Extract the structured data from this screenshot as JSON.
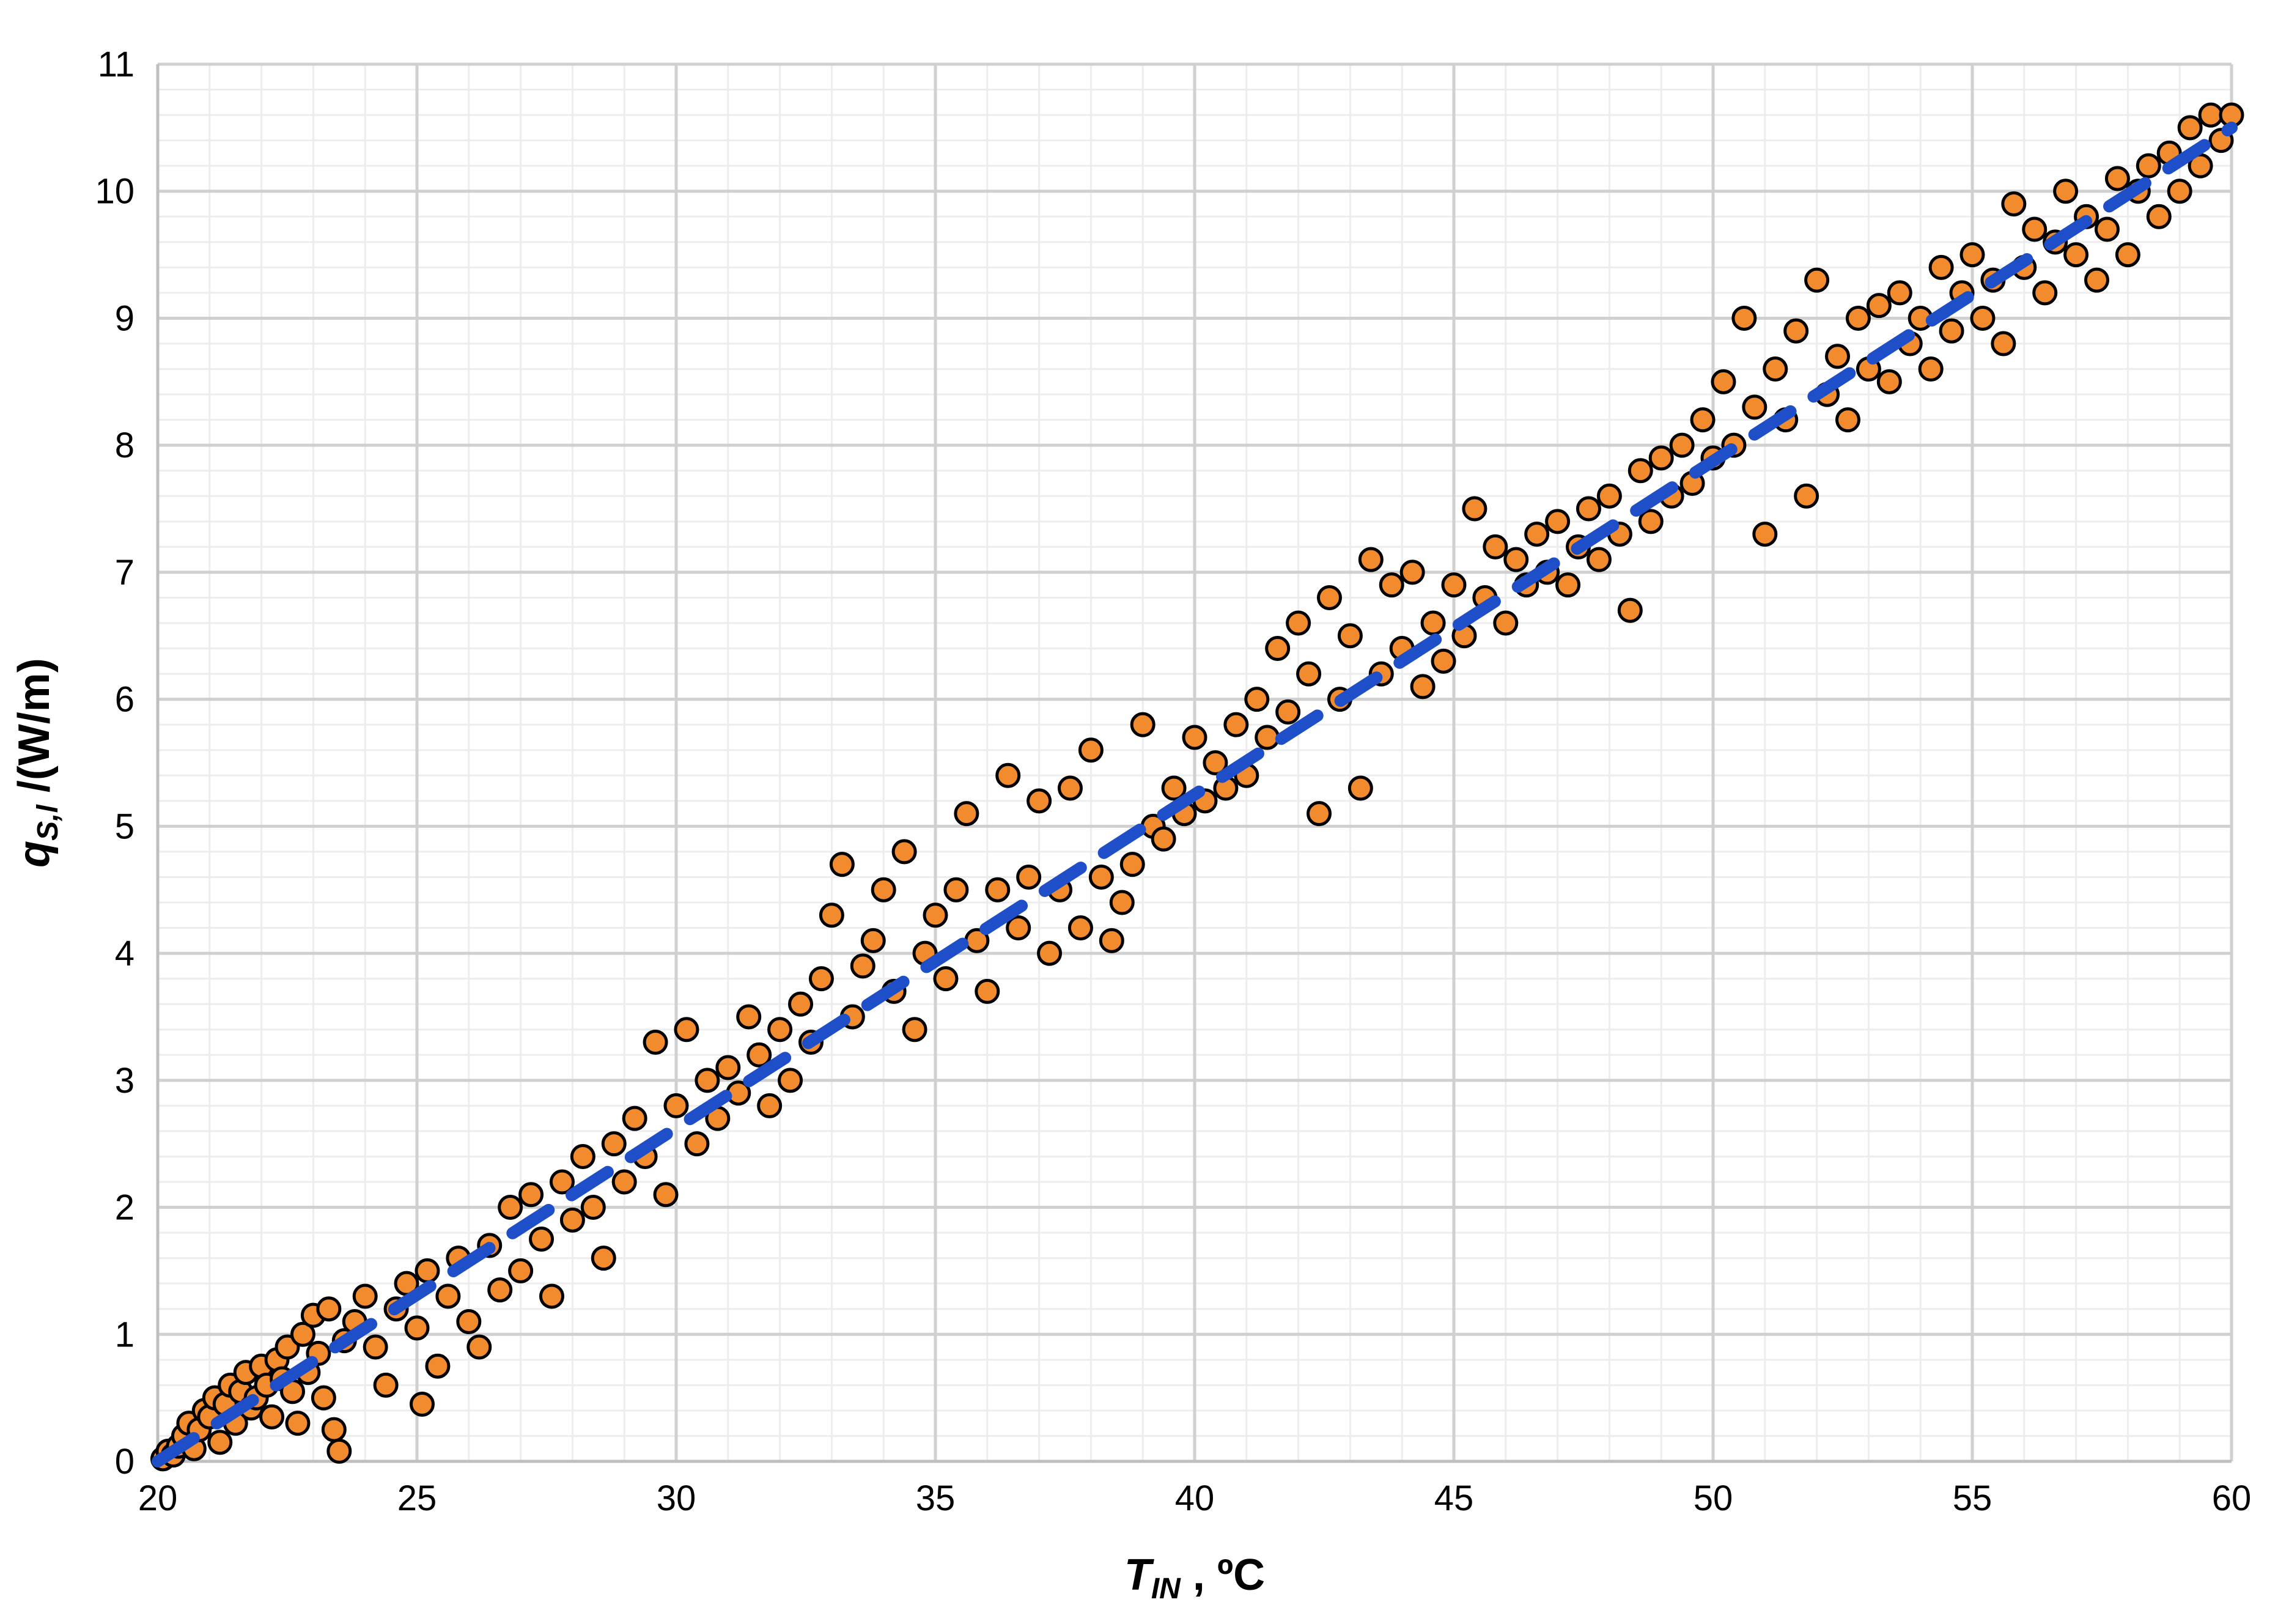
{
  "chart_data": {
    "type": "scatter",
    "title": "",
    "xlabel": {
      "main": "T",
      "sub": "IN",
      "suffix": " , ºC"
    },
    "ylabel": {
      "main": "q",
      "sub": "S,l",
      "suffix": " /(W/m)"
    },
    "xlim": [
      20,
      60
    ],
    "ylim": [
      0,
      11
    ],
    "x_ticks": [
      20,
      25,
      30,
      35,
      40,
      45,
      50,
      55,
      60
    ],
    "y_ticks": [
      0,
      1,
      2,
      3,
      4,
      5,
      6,
      7,
      8,
      9,
      10,
      11
    ],
    "x_tick_labels": [
      "20",
      "25",
      "30",
      "35",
      "40",
      "45",
      "50",
      "55",
      "60"
    ],
    "y_tick_labels": [
      "0",
      "1",
      "2",
      "3",
      "4",
      "5",
      "6",
      "7",
      "8",
      "9",
      "10",
      "11"
    ],
    "x_minor_step": 1,
    "y_minor_step": 0.2,
    "grid": true,
    "legend": "none",
    "colors": {
      "marker_fill": "#F28B2E",
      "marker_edge": "#000000",
      "trendline": "#1F4FC8",
      "major_grid": "#D0D0D0",
      "minor_grid": "#EDEDED",
      "axis": "#BFBFBF"
    },
    "trendline": {
      "style": "dashed",
      "x": [
        20,
        60
      ],
      "y": [
        0.0,
        10.5
      ]
    },
    "series": [
      {
        "marker": "circle",
        "points": [
          [
            20.1,
            0.02
          ],
          [
            20.2,
            0.08
          ],
          [
            20.3,
            0.05
          ],
          [
            20.4,
            0.12
          ],
          [
            20.5,
            0.2
          ],
          [
            20.6,
            0.3
          ],
          [
            20.7,
            0.1
          ],
          [
            20.8,
            0.25
          ],
          [
            20.9,
            0.4
          ],
          [
            21.0,
            0.35
          ],
          [
            21.1,
            0.5
          ],
          [
            21.2,
            0.15
          ],
          [
            21.3,
            0.45
          ],
          [
            21.4,
            0.6
          ],
          [
            21.5,
            0.3
          ],
          [
            21.6,
            0.55
          ],
          [
            21.7,
            0.7
          ],
          [
            21.8,
            0.42
          ],
          [
            21.9,
            0.5
          ],
          [
            22.0,
            0.75
          ],
          [
            22.1,
            0.6
          ],
          [
            22.2,
            0.35
          ],
          [
            22.3,
            0.8
          ],
          [
            22.4,
            0.65
          ],
          [
            22.5,
            0.9
          ],
          [
            22.6,
            0.55
          ],
          [
            22.7,
            0.3
          ],
          [
            22.8,
            1.0
          ],
          [
            22.9,
            0.7
          ],
          [
            23.0,
            1.15
          ],
          [
            23.1,
            0.85
          ],
          [
            23.2,
            0.5
          ],
          [
            23.3,
            1.2
          ],
          [
            23.4,
            0.25
          ],
          [
            23.5,
            0.08
          ],
          [
            23.6,
            0.95
          ],
          [
            23.8,
            1.1
          ],
          [
            24.0,
            1.3
          ],
          [
            24.2,
            0.9
          ],
          [
            24.4,
            0.6
          ],
          [
            24.6,
            1.2
          ],
          [
            24.8,
            1.4
          ],
          [
            25.0,
            1.05
          ],
          [
            25.1,
            0.45
          ],
          [
            25.2,
            1.5
          ],
          [
            25.4,
            0.75
          ],
          [
            25.6,
            1.3
          ],
          [
            25.8,
            1.6
          ],
          [
            26.0,
            1.1
          ],
          [
            26.2,
            0.9
          ],
          [
            26.4,
            1.7
          ],
          [
            26.6,
            1.35
          ],
          [
            26.8,
            2.0
          ],
          [
            27.0,
            1.5
          ],
          [
            27.2,
            2.1
          ],
          [
            27.4,
            1.75
          ],
          [
            27.6,
            1.3
          ],
          [
            27.8,
            2.2
          ],
          [
            28.0,
            1.9
          ],
          [
            28.2,
            2.4
          ],
          [
            28.4,
            2.0
          ],
          [
            28.6,
            1.6
          ],
          [
            28.8,
            2.5
          ],
          [
            29.0,
            2.2
          ],
          [
            29.2,
            2.7
          ],
          [
            29.4,
            2.4
          ],
          [
            29.6,
            3.3
          ],
          [
            29.8,
            2.1
          ],
          [
            30.0,
            2.8
          ],
          [
            30.2,
            3.4
          ],
          [
            30.4,
            2.5
          ],
          [
            30.6,
            3.0
          ],
          [
            30.8,
            2.7
          ],
          [
            31.0,
            3.1
          ],
          [
            31.2,
            2.9
          ],
          [
            31.4,
            3.5
          ],
          [
            31.6,
            3.2
          ],
          [
            31.8,
            2.8
          ],
          [
            32.0,
            3.4
          ],
          [
            32.2,
            3.0
          ],
          [
            32.4,
            3.6
          ],
          [
            32.6,
            3.3
          ],
          [
            32.8,
            3.8
          ],
          [
            33.0,
            4.3
          ],
          [
            33.2,
            4.7
          ],
          [
            33.4,
            3.5
          ],
          [
            33.6,
            3.9
          ],
          [
            33.8,
            4.1
          ],
          [
            34.0,
            4.5
          ],
          [
            34.2,
            3.7
          ],
          [
            34.4,
            4.8
          ],
          [
            34.6,
            3.4
          ],
          [
            34.8,
            4.0
          ],
          [
            35.0,
            4.3
          ],
          [
            35.2,
            3.8
          ],
          [
            35.4,
            4.5
          ],
          [
            35.6,
            5.1
          ],
          [
            35.8,
            4.1
          ],
          [
            36.0,
            3.7
          ],
          [
            36.2,
            4.5
          ],
          [
            36.4,
            5.4
          ],
          [
            36.6,
            4.2
          ],
          [
            36.8,
            4.6
          ],
          [
            37.0,
            5.2
          ],
          [
            37.2,
            4.0
          ],
          [
            37.4,
            4.5
          ],
          [
            37.6,
            5.3
          ],
          [
            37.8,
            4.2
          ],
          [
            38.0,
            5.6
          ],
          [
            38.2,
            4.6
          ],
          [
            38.4,
            4.1
          ],
          [
            38.6,
            4.4
          ],
          [
            38.8,
            4.7
          ],
          [
            39.0,
            5.8
          ],
          [
            39.2,
            5.0
          ],
          [
            39.4,
            4.9
          ],
          [
            39.6,
            5.3
          ],
          [
            39.8,
            5.1
          ],
          [
            40.0,
            5.7
          ],
          [
            40.2,
            5.2
          ],
          [
            40.4,
            5.5
          ],
          [
            40.6,
            5.3
          ],
          [
            40.8,
            5.8
          ],
          [
            41.0,
            5.4
          ],
          [
            41.2,
            6.0
          ],
          [
            41.4,
            5.7
          ],
          [
            41.6,
            6.4
          ],
          [
            41.8,
            5.9
          ],
          [
            42.0,
            6.6
          ],
          [
            42.2,
            6.2
          ],
          [
            42.4,
            5.1
          ],
          [
            42.6,
            6.8
          ],
          [
            42.8,
            6.0
          ],
          [
            43.0,
            6.5
          ],
          [
            43.2,
            5.3
          ],
          [
            43.4,
            7.1
          ],
          [
            43.6,
            6.2
          ],
          [
            43.8,
            6.9
          ],
          [
            44.0,
            6.4
          ],
          [
            44.2,
            7.0
          ],
          [
            44.4,
            6.1
          ],
          [
            44.6,
            6.6
          ],
          [
            44.8,
            6.3
          ],
          [
            45.0,
            6.9
          ],
          [
            45.2,
            6.5
          ],
          [
            45.4,
            7.5
          ],
          [
            45.6,
            6.8
          ],
          [
            45.8,
            7.2
          ],
          [
            46.0,
            6.6
          ],
          [
            46.2,
            7.1
          ],
          [
            46.4,
            6.9
          ],
          [
            46.6,
            7.3
          ],
          [
            46.8,
            7.0
          ],
          [
            47.0,
            7.4
          ],
          [
            47.2,
            6.9
          ],
          [
            47.4,
            7.2
          ],
          [
            47.6,
            7.5
          ],
          [
            47.8,
            7.1
          ],
          [
            48.0,
            7.6
          ],
          [
            48.2,
            7.3
          ],
          [
            48.4,
            6.7
          ],
          [
            48.6,
            7.8
          ],
          [
            48.8,
            7.4
          ],
          [
            49.0,
            7.9
          ],
          [
            49.2,
            7.6
          ],
          [
            49.4,
            8.0
          ],
          [
            49.6,
            7.7
          ],
          [
            49.8,
            8.2
          ],
          [
            50.0,
            7.9
          ],
          [
            50.2,
            8.5
          ],
          [
            50.4,
            8.0
          ],
          [
            50.6,
            9.0
          ],
          [
            50.8,
            8.3
          ],
          [
            51.0,
            7.3
          ],
          [
            51.2,
            8.6
          ],
          [
            51.4,
            8.2
          ],
          [
            51.6,
            8.9
          ],
          [
            51.8,
            7.6
          ],
          [
            52.0,
            9.3
          ],
          [
            52.2,
            8.4
          ],
          [
            52.4,
            8.7
          ],
          [
            52.6,
            8.2
          ],
          [
            52.8,
            9.0
          ],
          [
            53.0,
            8.6
          ],
          [
            53.2,
            9.1
          ],
          [
            53.4,
            8.5
          ],
          [
            53.6,
            9.2
          ],
          [
            53.8,
            8.8
          ],
          [
            54.0,
            9.0
          ],
          [
            54.2,
            8.6
          ],
          [
            54.4,
            9.4
          ],
          [
            54.6,
            8.9
          ],
          [
            54.8,
            9.2
          ],
          [
            55.0,
            9.5
          ],
          [
            55.2,
            9.0
          ],
          [
            55.4,
            9.3
          ],
          [
            55.6,
            8.8
          ],
          [
            55.8,
            9.9
          ],
          [
            56.0,
            9.4
          ],
          [
            56.2,
            9.7
          ],
          [
            56.4,
            9.2
          ],
          [
            56.6,
            9.6
          ],
          [
            56.8,
            10.0
          ],
          [
            57.0,
            9.5
          ],
          [
            57.2,
            9.8
          ],
          [
            57.4,
            9.3
          ],
          [
            57.6,
            9.7
          ],
          [
            57.8,
            10.1
          ],
          [
            58.0,
            9.5
          ],
          [
            58.2,
            10.0
          ],
          [
            58.4,
            10.2
          ],
          [
            58.6,
            9.8
          ],
          [
            58.8,
            10.3
          ],
          [
            59.0,
            10.0
          ],
          [
            59.2,
            10.5
          ],
          [
            59.4,
            10.2
          ],
          [
            59.6,
            10.6
          ],
          [
            59.8,
            10.4
          ],
          [
            60.0,
            10.6
          ]
        ]
      }
    ]
  }
}
